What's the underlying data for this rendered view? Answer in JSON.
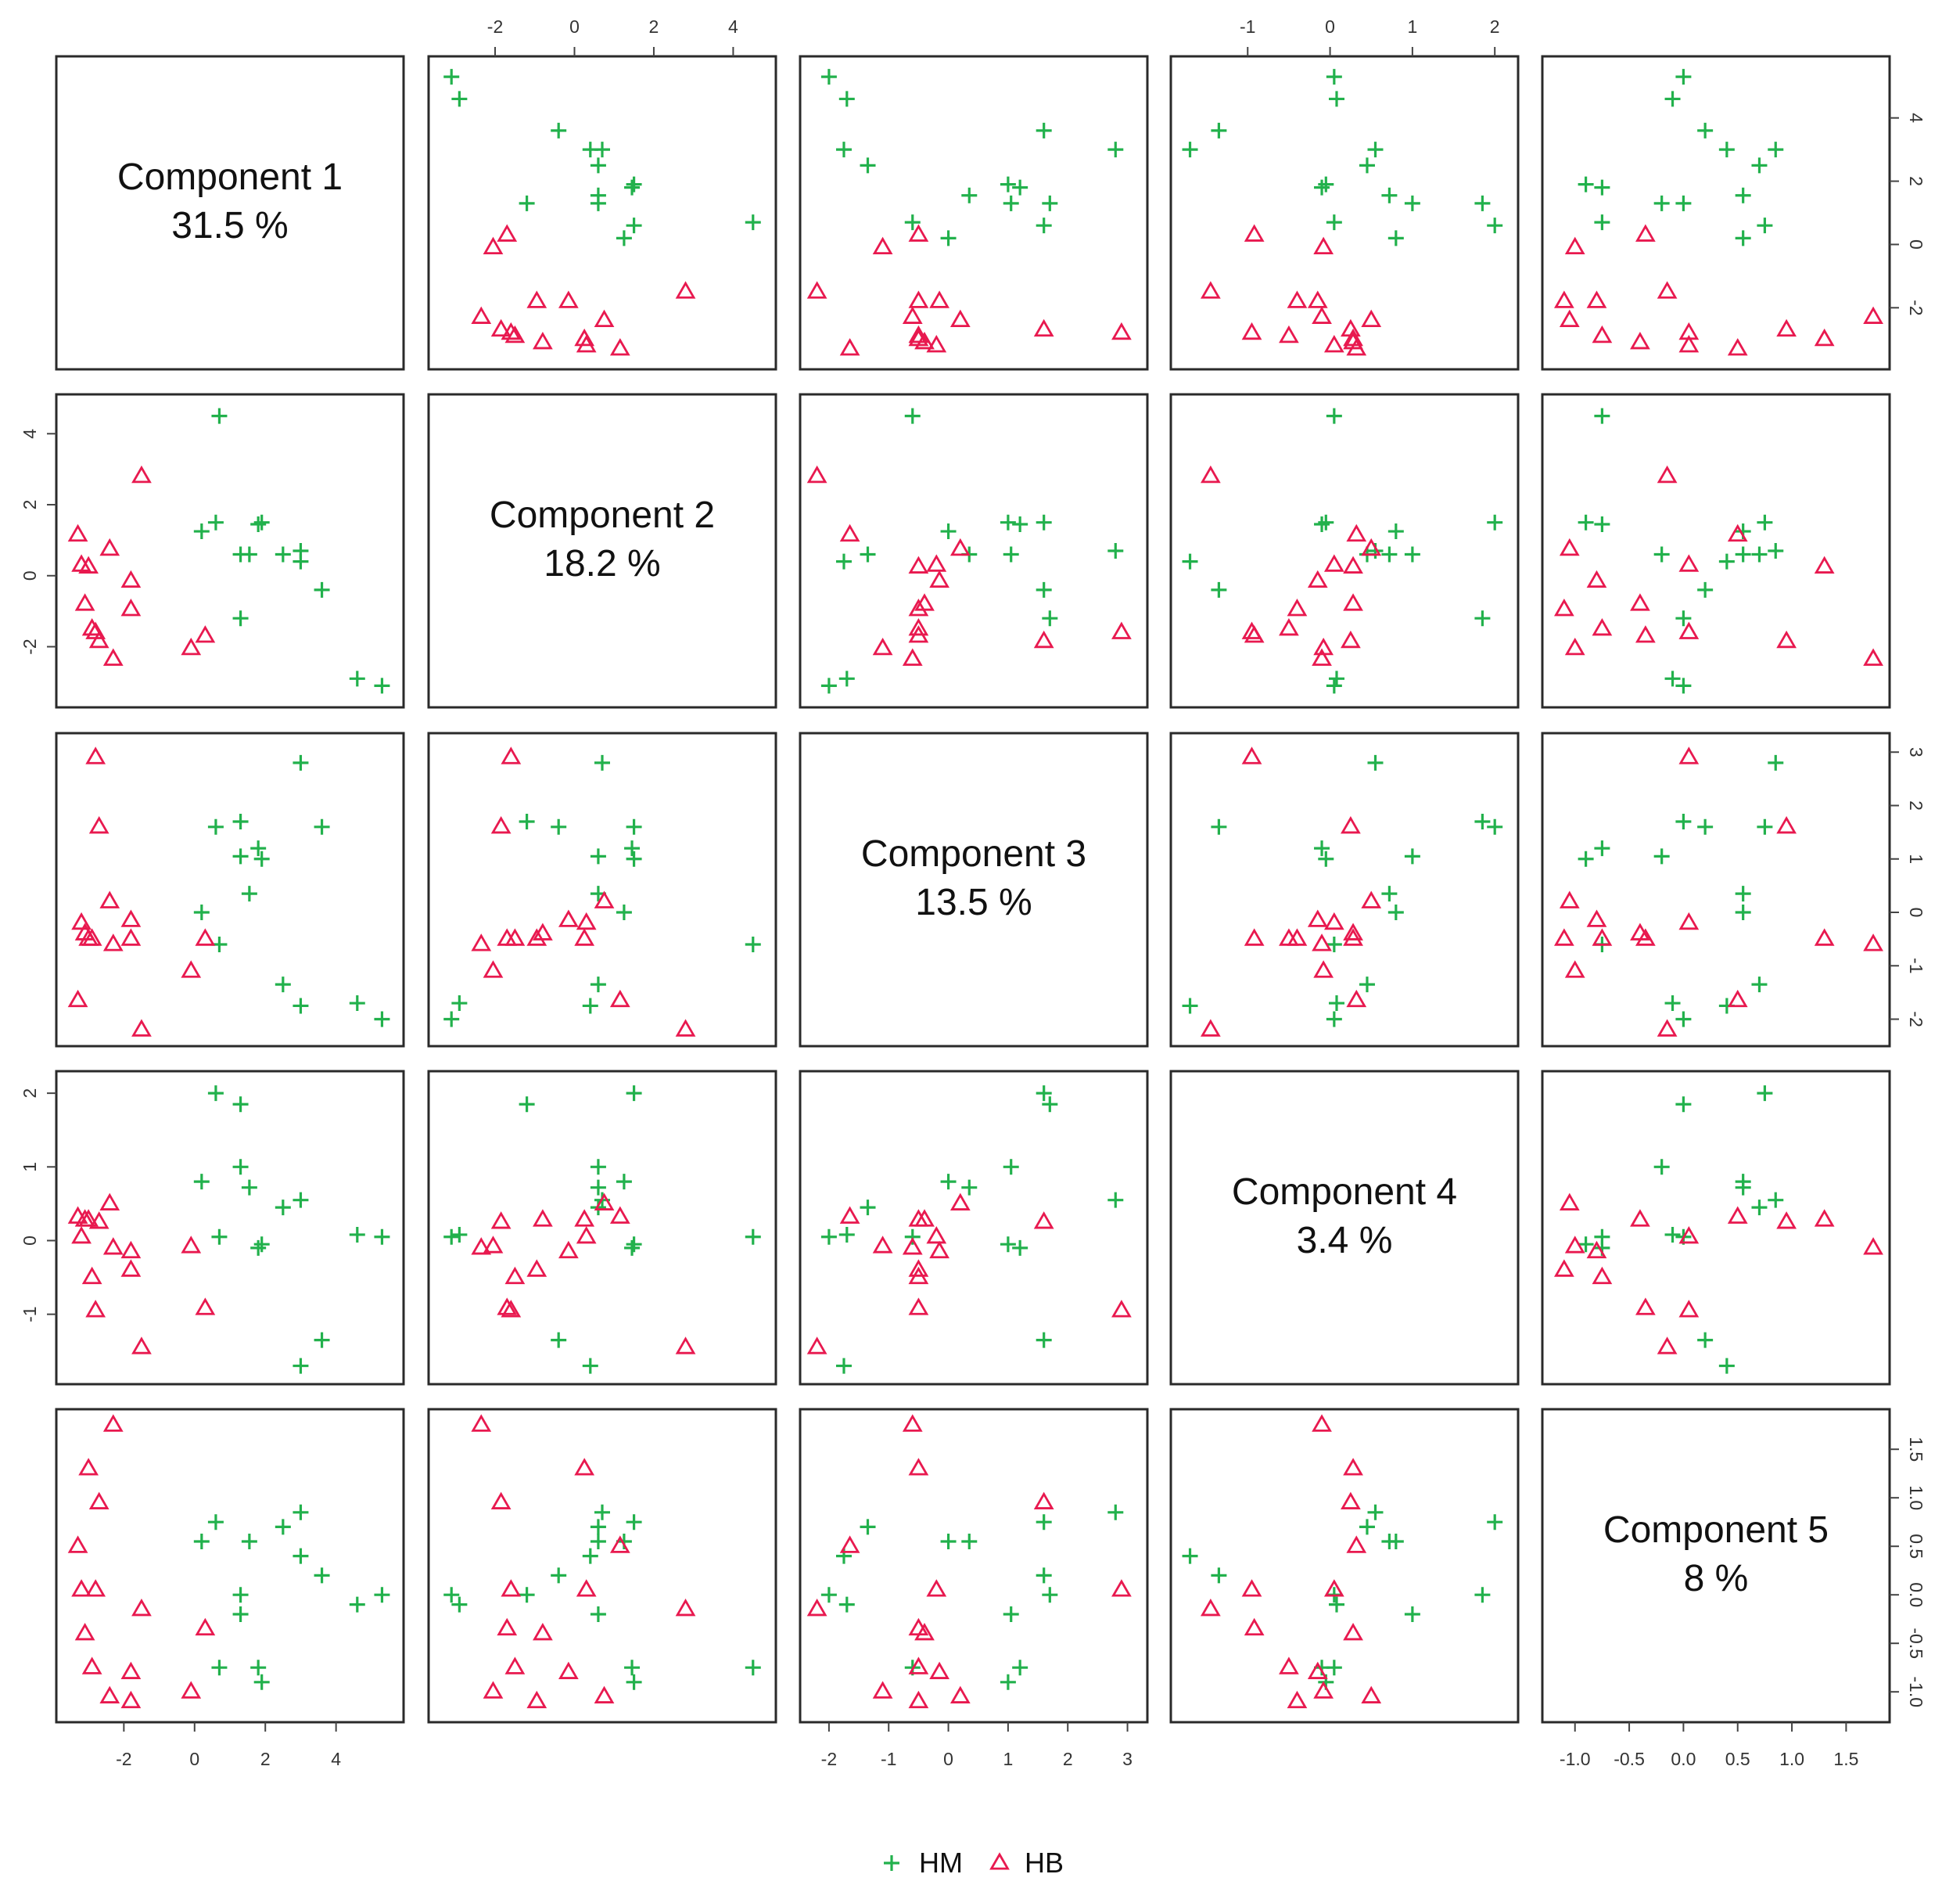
{
  "chart_data": {
    "type": "scatter",
    "subtype": "pairs-matrix",
    "components": [
      {
        "name": "Component 1",
        "variance": "31.5 %",
        "ticks": [
          -2,
          0,
          2,
          4
        ],
        "range": [
          -3.6,
          5.6
        ]
      },
      {
        "name": "Component 2",
        "variance": "18.2 %",
        "ticks": [
          -2,
          0,
          2,
          4
        ],
        "range": [
          -3.4,
          4.8
        ]
      },
      {
        "name": "Component 3",
        "variance": "13.5 %",
        "ticks": [
          -2,
          -1,
          0,
          1,
          2,
          3
        ],
        "range": [
          -2.3,
          3.15
        ]
      },
      {
        "name": "Component 4",
        "variance": "3.4 %",
        "ticks": [
          -1,
          0,
          1,
          2
        ],
        "range": [
          -1.8,
          2.15
        ]
      },
      {
        "name": "Component 5",
        "variance": "8 %",
        "ticks": [
          -1.0,
          -0.5,
          0.0,
          0.5,
          1.0,
          1.5
        ],
        "tick_labels": [
          "-1.0",
          "-0.5",
          "0.0",
          "0.5",
          "1.0",
          "1.5"
        ],
        "range": [
          -1.2,
          1.8
        ]
      }
    ],
    "series": [
      {
        "name": "HM",
        "color": "#22b14c",
        "marker": "plus",
        "points": [
          [
            5.3,
            -3.1,
            -2.0,
            0.05,
            0.0
          ],
          [
            4.6,
            -2.9,
            -1.7,
            0.08,
            -0.1
          ],
          [
            3.6,
            -0.4,
            1.6,
            -1.35,
            0.2
          ],
          [
            3.0,
            0.4,
            -1.75,
            -1.7,
            0.4
          ],
          [
            3.0,
            0.7,
            2.8,
            0.55,
            0.85
          ],
          [
            2.5,
            0.6,
            -1.35,
            0.45,
            0.7
          ],
          [
            1.9,
            1.5,
            1.0,
            -0.05,
            -0.9
          ],
          [
            1.8,
            1.45,
            1.2,
            -0.1,
            -0.75
          ],
          [
            1.55,
            0.6,
            0.35,
            0.72,
            0.55
          ],
          [
            1.3,
            -1.2,
            1.7,
            1.85,
            0.0
          ],
          [
            1.3,
            0.6,
            1.05,
            1.0,
            -0.2
          ],
          [
            0.7,
            4.5,
            -0.6,
            0.05,
            -0.75
          ],
          [
            0.6,
            1.5,
            1.6,
            2.0,
            0.75
          ],
          [
            0.2,
            1.25,
            0.0,
            0.8,
            0.55
          ]
        ]
      },
      {
        "name": "HB",
        "color": "#e8194f",
        "marker": "triangle",
        "points": [
          [
            -3.3,
            1.15,
            -1.65,
            0.32,
            0.5
          ],
          [
            -3.2,
            0.3,
            -0.2,
            0.05,
            0.05
          ],
          [
            -3.1,
            -0.8,
            -0.4,
            0.28,
            -0.4
          ],
          [
            -3.0,
            0.25,
            -0.5,
            0.28,
            1.3
          ],
          [
            -2.9,
            -1.5,
            -0.5,
            -0.5,
            -0.75
          ],
          [
            -2.8,
            -1.6,
            2.9,
            -0.95,
            0.05
          ],
          [
            -2.7,
            -1.85,
            1.6,
            0.25,
            0.95
          ],
          [
            -2.4,
            0.75,
            0.2,
            0.5,
            -1.05
          ],
          [
            -2.3,
            -2.35,
            -0.6,
            -0.1,
            1.75
          ],
          [
            -1.8,
            -0.15,
            -0.15,
            -0.15,
            -0.8
          ],
          [
            -1.8,
            -0.95,
            -0.5,
            -0.4,
            -1.1
          ],
          [
            -1.5,
            2.8,
            -2.2,
            -1.45,
            -0.15
          ],
          [
            -0.1,
            -2.05,
            -1.1,
            -0.08,
            -1.0
          ],
          [
            0.3,
            -1.7,
            -0.5,
            -0.92,
            -0.35
          ]
        ]
      }
    ],
    "legend": {
      "position": "bottom-center",
      "entries": [
        "HM",
        "HB"
      ]
    }
  }
}
